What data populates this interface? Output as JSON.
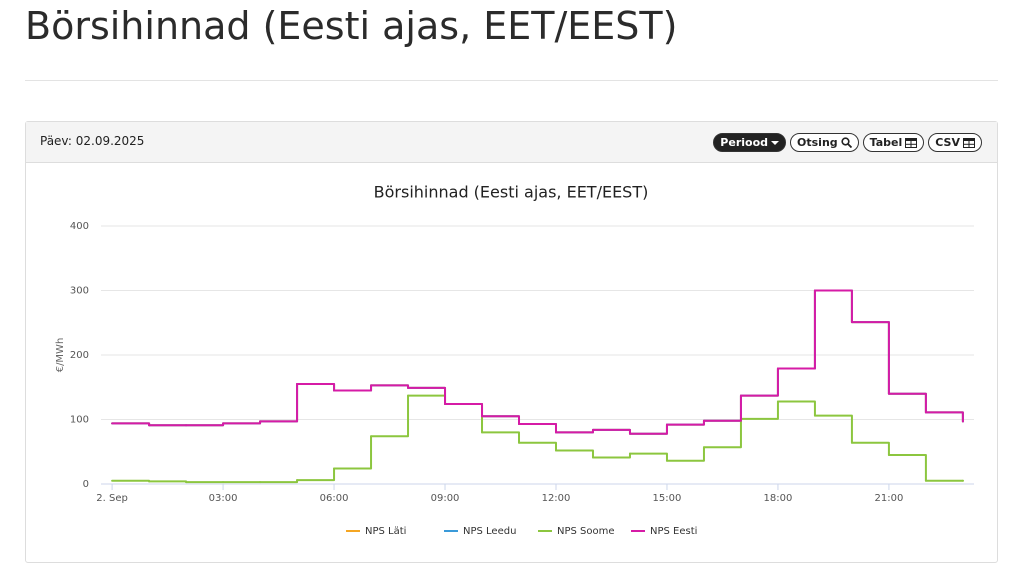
{
  "page": {
    "heading": "Börsihinnad (Eesti ajas, EET/EEST)",
    "day": "Päev: 02.09.2025",
    "buttons": [
      "Periood",
      "Otsing",
      "Tabel",
      "CSV"
    ]
  },
  "chart_data": {
    "type": "line",
    "step": true,
    "title": "Börsihinnad (Eesti ajas, EET/EEST)",
    "y_label": "€/MWh",
    "x": [
      0,
      1,
      2,
      3,
      4,
      5,
      6,
      7,
      8,
      9,
      10,
      11,
      12,
      13,
      14,
      15,
      16,
      17,
      18,
      19,
      20,
      21,
      22,
      23
    ],
    "xlim": [
      -0.3,
      23.3
    ],
    "xticks": [
      {
        "value": 0,
        "label": "2. Sep"
      },
      {
        "value": 3,
        "label": "03:00"
      },
      {
        "value": 6,
        "label": "06:00"
      },
      {
        "value": 9,
        "label": "09:00"
      },
      {
        "value": 12,
        "label": "12:00"
      },
      {
        "value": 15,
        "label": "15:00"
      },
      {
        "value": 18,
        "label": "18:00"
      },
      {
        "value": 21,
        "label": "21:00"
      }
    ],
    "ylim": [
      0,
      400
    ],
    "yticks": [
      0,
      100,
      200,
      300,
      400
    ],
    "grid": true,
    "series": [
      {
        "name": "NPS Läti",
        "color": "#f5a623",
        "values": [
          94,
          91,
          91,
          94,
          97,
          155,
          145,
          153,
          149,
          124,
          105,
          93,
          80,
          84,
          78,
          92,
          98,
          137,
          179,
          300,
          251,
          140,
          111,
          97
        ]
      },
      {
        "name": "NPS Leedu",
        "color": "#3a9ad9",
        "values": [
          94,
          91,
          91,
          94,
          97,
          155,
          145,
          153,
          149,
          124,
          105,
          93,
          80,
          84,
          78,
          92,
          98,
          137,
          179,
          300,
          251,
          140,
          111,
          97
        ]
      },
      {
        "name": "NPS Soome",
        "color": "#8cc63f",
        "values": [
          5,
          4,
          3,
          3,
          3,
          6,
          24,
          74,
          137,
          124,
          80,
          64,
          52,
          41,
          47,
          36,
          57,
          101,
          128,
          106,
          64,
          45,
          5,
          5
        ]
      },
      {
        "name": "NPS Eesti",
        "color": "#d61ba6",
        "values": [
          94,
          91,
          91,
          94,
          97,
          155,
          145,
          153,
          149,
          124,
          105,
          93,
          80,
          84,
          78,
          92,
          98,
          137,
          179,
          300,
          251,
          140,
          111,
          97
        ]
      }
    ]
  }
}
